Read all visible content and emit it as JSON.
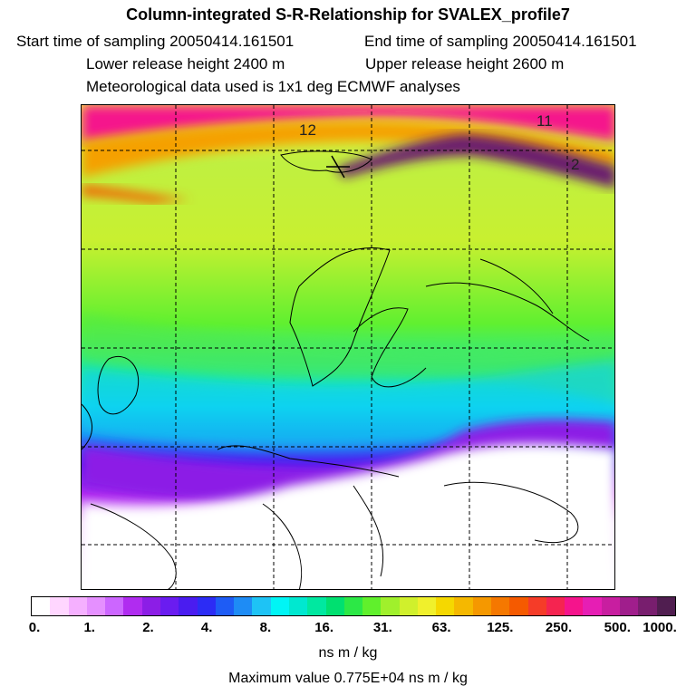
{
  "header": {
    "title": "Column-integrated S-R-Relationship for SVALEX_profile7",
    "start_time": "Start time of sampling 20050414.161501",
    "end_time": "End time of sampling 20050414.161501",
    "lower_release": "Lower release height 2400 m",
    "upper_release": "Upper release height 2600 m",
    "meteo": "Meteorological data used is 1x1 deg ECMWF analyses"
  },
  "map": {
    "contour_labels": [
      "12",
      "11",
      "2"
    ]
  },
  "colorbar": {
    "tick_labels": [
      "0.",
      "1.",
      "2.",
      "4.",
      "8.",
      "16.",
      "31.",
      "63.",
      "125.",
      "250.",
      "500.",
      "1000."
    ],
    "colors": [
      "#ffffff",
      "#ffd6ff",
      "#f5b0ff",
      "#e590ff",
      "#cc66ff",
      "#b02cf0",
      "#8c1ee6",
      "#6a1cf0",
      "#4a1cf0",
      "#2c2cf5",
      "#1e5cf5",
      "#1e8cf5",
      "#1ec3f5",
      "#00f5f5",
      "#00e8d0",
      "#00e8a0",
      "#00e070",
      "#2ce846",
      "#60f02c",
      "#a0f02c",
      "#d0f02c",
      "#f0f02c",
      "#f5d800",
      "#f5b800",
      "#f59800",
      "#f57800",
      "#f55a00",
      "#f53c28",
      "#f52450",
      "#f5148c",
      "#e61eb4",
      "#c81ea0",
      "#a01e8c",
      "#781e6e",
      "#501e50"
    ],
    "units": "ns m / kg",
    "maximum": "Maximum value  0.775E+04 ns m / kg"
  }
}
